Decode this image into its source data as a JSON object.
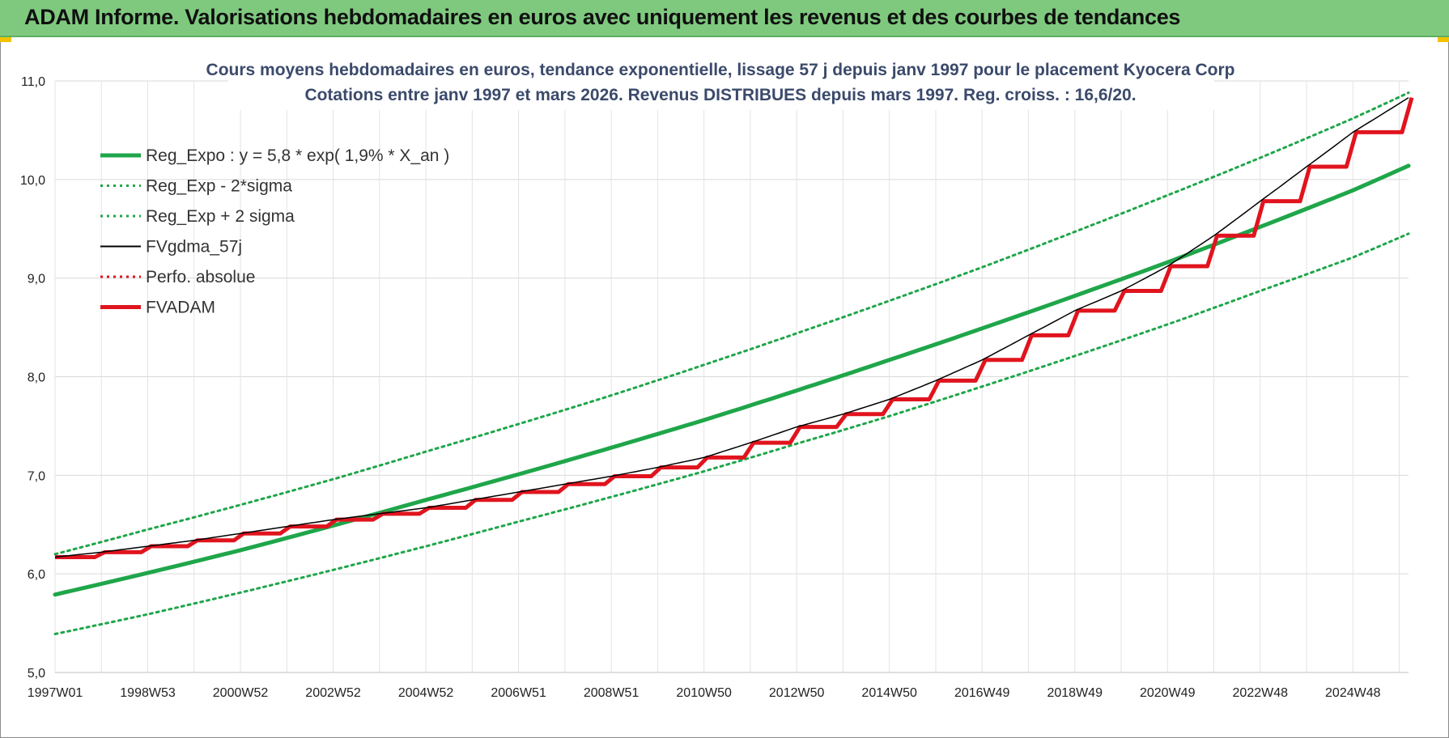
{
  "banner": {
    "title": "ADAM Informe. Valorisations hebdomadaires en euros avec uniquement les revenus et des courbes de tendances"
  },
  "colors": {
    "banner_bg": "#7fc97f",
    "green": "#1fa64a",
    "red": "#e0141e",
    "black": "#000000",
    "title": "#3b4a6b",
    "grid": "#d9d9d9"
  },
  "chart_data": {
    "type": "line",
    "title_lines": [
      "Cours moyens hebdomadaires en euros, tendance exponentielle, lissage 57 j depuis janv 1997 pour le placement Kyocera Corp",
      "Cotations entre janv 1997 et mars 2026. Revenus DISTRIBUES depuis mars 1997. Reg. croiss. : 16,6/20."
    ],
    "xlabel": "",
    "ylabel": "",
    "x_range": [
      1997.0,
      2026.2
    ],
    "ylim": [
      5.0,
      11.0
    ],
    "y_ticks": [
      "5,0",
      "6,0",
      "7,0",
      "8,0",
      "9,0",
      "10,0",
      "11,0"
    ],
    "y_tick_values": [
      5,
      6,
      7,
      8,
      9,
      10,
      11
    ],
    "x_ticks": [
      {
        "label": "1997W01",
        "x": 1997.0
      },
      {
        "label": "1998W53",
        "x": 1999.0
      },
      {
        "label": "2000W52",
        "x": 2001.0
      },
      {
        "label": "2002W52",
        "x": 2003.0
      },
      {
        "label": "2004W52",
        "x": 2005.0
      },
      {
        "label": "2006W51",
        "x": 2007.0
      },
      {
        "label": "2008W51",
        "x": 2009.0
      },
      {
        "label": "2010W50",
        "x": 2011.0
      },
      {
        "label": "2012W50",
        "x": 2013.0
      },
      {
        "label": "2014W50",
        "x": 2015.0
      },
      {
        "label": "2016W49",
        "x": 2017.0
      },
      {
        "label": "2018W49",
        "x": 2019.0
      },
      {
        "label": "2020W49",
        "x": 2021.0
      },
      {
        "label": "2022W48",
        "x": 2023.0
      },
      {
        "label": "2024W48",
        "x": 2025.0
      }
    ],
    "grid": true,
    "legend_position": "top-left",
    "legend": [
      {
        "name": "Reg_Expo : y = 5,8 * exp( 1,9% *  X_an )",
        "color": "#1fa64a",
        "style": "solid-thick"
      },
      {
        "name": "Reg_Exp - 2*sigma",
        "color": "#1fa64a",
        "style": "dotted"
      },
      {
        "name": "Reg_Exp + 2 sigma",
        "color": "#1fa64a",
        "style": "dotted"
      },
      {
        "name": "FVgdma_57j",
        "color": "#000000",
        "style": "solid"
      },
      {
        "name": "Perfo. absolue",
        "color": "#e0141e",
        "style": "dotted"
      },
      {
        "name": "FVADAM",
        "color": "#e0141e",
        "style": "solid-thick"
      }
    ],
    "series": [
      {
        "name": "Reg_Expo : y = 5,8 * exp( 1,9% *  X_an )",
        "x": [
          1997,
          1999,
          2001,
          2003,
          2005,
          2007,
          2009,
          2011,
          2013,
          2015,
          2017,
          2019,
          2021,
          2023,
          2025,
          2026.2
        ],
        "y": [
          5.79,
          6.01,
          6.24,
          6.49,
          6.75,
          7.01,
          7.28,
          7.56,
          7.86,
          8.17,
          8.49,
          8.82,
          9.16,
          9.52,
          9.89,
          10.14
        ]
      },
      {
        "name": "Reg_Exp - 2*sigma",
        "x": [
          1997,
          1999,
          2001,
          2003,
          2005,
          2007,
          2009,
          2011,
          2013,
          2015,
          2017,
          2019,
          2021,
          2023,
          2025,
          2026.2
        ],
        "y": [
          5.39,
          5.59,
          5.81,
          6.04,
          6.28,
          6.53,
          6.78,
          7.04,
          7.32,
          7.6,
          7.9,
          8.21,
          8.53,
          8.87,
          9.21,
          9.45
        ]
      },
      {
        "name": "Reg_Exp + 2 sigma",
        "x": [
          1997,
          1999,
          2001,
          2003,
          2005,
          2007,
          2009,
          2011,
          2013,
          2015,
          2017,
          2019,
          2021,
          2023,
          2025,
          2026.2
        ],
        "y": [
          6.2,
          6.45,
          6.7,
          6.96,
          7.24,
          7.52,
          7.81,
          8.12,
          8.44,
          8.77,
          9.11,
          9.47,
          9.84,
          10.22,
          10.62,
          10.88
        ]
      },
      {
        "name": "FVgdma_57j",
        "x": [
          1997.0,
          1998.0,
          1999.0,
          2000.0,
          2001.0,
          2002.0,
          2003.0,
          2004.0,
          2005.0,
          2006.0,
          2007.0,
          2008.0,
          2009.0,
          2010.0,
          2011.0,
          2012.0,
          2013.0,
          2014.0,
          2015.0,
          2016.0,
          2017.0,
          2018.0,
          2019.0,
          2020.0,
          2021.0,
          2022.0,
          2023.0,
          2024.0,
          2025.0,
          2026.2
        ],
        "y": [
          6.17,
          6.22,
          6.28,
          6.34,
          6.41,
          6.48,
          6.55,
          6.61,
          6.67,
          6.75,
          6.83,
          6.91,
          6.99,
          7.08,
          7.18,
          7.33,
          7.49,
          7.62,
          7.77,
          7.96,
          8.17,
          8.42,
          8.67,
          8.87,
          9.12,
          9.43,
          9.78,
          10.13,
          10.48,
          10.83
        ]
      },
      {
        "name": "Perfo. absolue",
        "x": [
          1997.0,
          1998.0,
          1999.0,
          2000.0,
          2001.0,
          2002.0,
          2003.0,
          2004.0,
          2005.0,
          2006.0,
          2007.0,
          2008.0,
          2009.0,
          2010.0,
          2011.0,
          2012.0,
          2013.0,
          2014.0,
          2015.0,
          2016.0,
          2017.0,
          2018.0,
          2019.0,
          2020.0,
          2021.0,
          2022.0,
          2023.0,
          2024.0,
          2025.0,
          2026.2
        ],
        "y": [
          6.17,
          6.22,
          6.28,
          6.34,
          6.41,
          6.48,
          6.55,
          6.61,
          6.67,
          6.75,
          6.83,
          6.91,
          6.99,
          7.08,
          7.18,
          7.33,
          7.49,
          7.62,
          7.77,
          7.96,
          8.17,
          8.42,
          8.67,
          8.87,
          9.12,
          9.43,
          9.78,
          10.13,
          10.48,
          10.83
        ]
      },
      {
        "name": "FVADAM",
        "x": [
          1997.0,
          1998.0,
          1999.0,
          2000.0,
          2001.0,
          2002.0,
          2003.0,
          2004.0,
          2005.0,
          2006.0,
          2007.0,
          2008.0,
          2009.0,
          2010.0,
          2011.0,
          2012.0,
          2013.0,
          2014.0,
          2015.0,
          2016.0,
          2017.0,
          2018.0,
          2019.0,
          2020.0,
          2021.0,
          2022.0,
          2023.0,
          2024.0,
          2025.0,
          2026.2
        ],
        "y": [
          6.17,
          6.22,
          6.28,
          6.34,
          6.41,
          6.48,
          6.55,
          6.61,
          6.67,
          6.75,
          6.83,
          6.91,
          6.99,
          7.08,
          7.18,
          7.33,
          7.49,
          7.62,
          7.77,
          7.96,
          8.17,
          8.42,
          8.67,
          8.87,
          9.12,
          9.43,
          9.78,
          10.13,
          10.48,
          10.83
        ]
      }
    ]
  }
}
